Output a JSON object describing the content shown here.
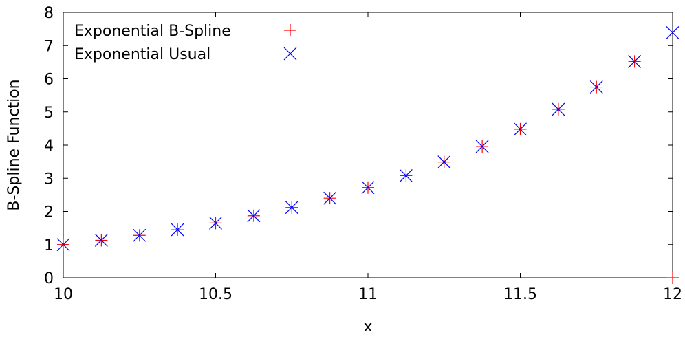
{
  "chart_data": {
    "type": "scatter",
    "xlabel": "x",
    "ylabel": "B-Spline Function",
    "xlim": [
      10,
      12
    ],
    "ylim": [
      0,
      8
    ],
    "x_ticks": [
      10,
      10.5,
      11,
      11.5,
      12
    ],
    "x_tick_labels": [
      "10",
      "10.5",
      "11",
      "11.5",
      "12"
    ],
    "y_ticks": [
      0,
      1,
      2,
      3,
      4,
      5,
      6,
      7,
      8
    ],
    "y_tick_labels": [
      "0",
      "1",
      "2",
      "3",
      "4",
      "5",
      "6",
      "7",
      "8"
    ],
    "grid": false,
    "legend_position": "top-left",
    "series": [
      {
        "name": "Exponential B-Spline",
        "marker": "plus",
        "color": "#ff0000",
        "x": [
          10,
          10.125,
          10.25,
          10.375,
          10.5,
          10.625,
          10.75,
          10.875,
          11,
          11.125,
          11.25,
          11.375,
          11.5,
          11.625,
          11.75,
          11.875,
          12
        ],
        "y": [
          1,
          1.13,
          1.28,
          1.45,
          1.65,
          1.87,
          2.12,
          2.4,
          2.72,
          3.08,
          3.49,
          3.96,
          4.48,
          5.08,
          5.75,
          6.52,
          0
        ]
      },
      {
        "name": "Exponential Usual",
        "marker": "cross",
        "color": "#0000ff",
        "x": [
          10,
          10.125,
          10.25,
          10.375,
          10.5,
          10.625,
          10.75,
          10.875,
          11,
          11.125,
          11.25,
          11.375,
          11.5,
          11.625,
          11.75,
          11.875,
          12
        ],
        "y": [
          1,
          1.13,
          1.28,
          1.45,
          1.65,
          1.87,
          2.12,
          2.4,
          2.72,
          3.08,
          3.49,
          3.96,
          4.48,
          5.08,
          5.75,
          6.52,
          7.39
        ]
      }
    ]
  }
}
